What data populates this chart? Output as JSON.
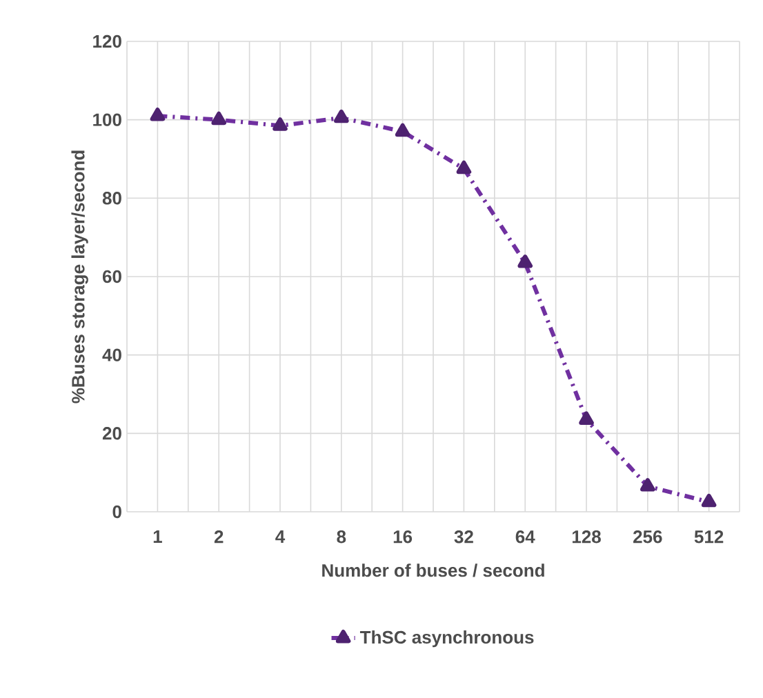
{
  "chart_data": {
    "type": "line",
    "xlabel": "Number of buses / second",
    "ylabel": "%Buses storage layer/second",
    "categories": [
      "1",
      "2",
      "4",
      "8",
      "16",
      "32",
      "64",
      "128",
      "256",
      "512"
    ],
    "series": [
      {
        "name": "ThSC asynchronous",
        "color": "#7030a0",
        "values": [
          101,
          100,
          98.5,
          100.5,
          97,
          87.5,
          63.5,
          23.5,
          6.5,
          2.5
        ]
      }
    ],
    "ylim": [
      0,
      120
    ],
    "yticks": [
      0,
      20,
      40,
      60,
      80,
      100,
      120
    ],
    "grid": true,
    "legend": "bottom",
    "marker": "triangle",
    "line_style": "dashed"
  }
}
